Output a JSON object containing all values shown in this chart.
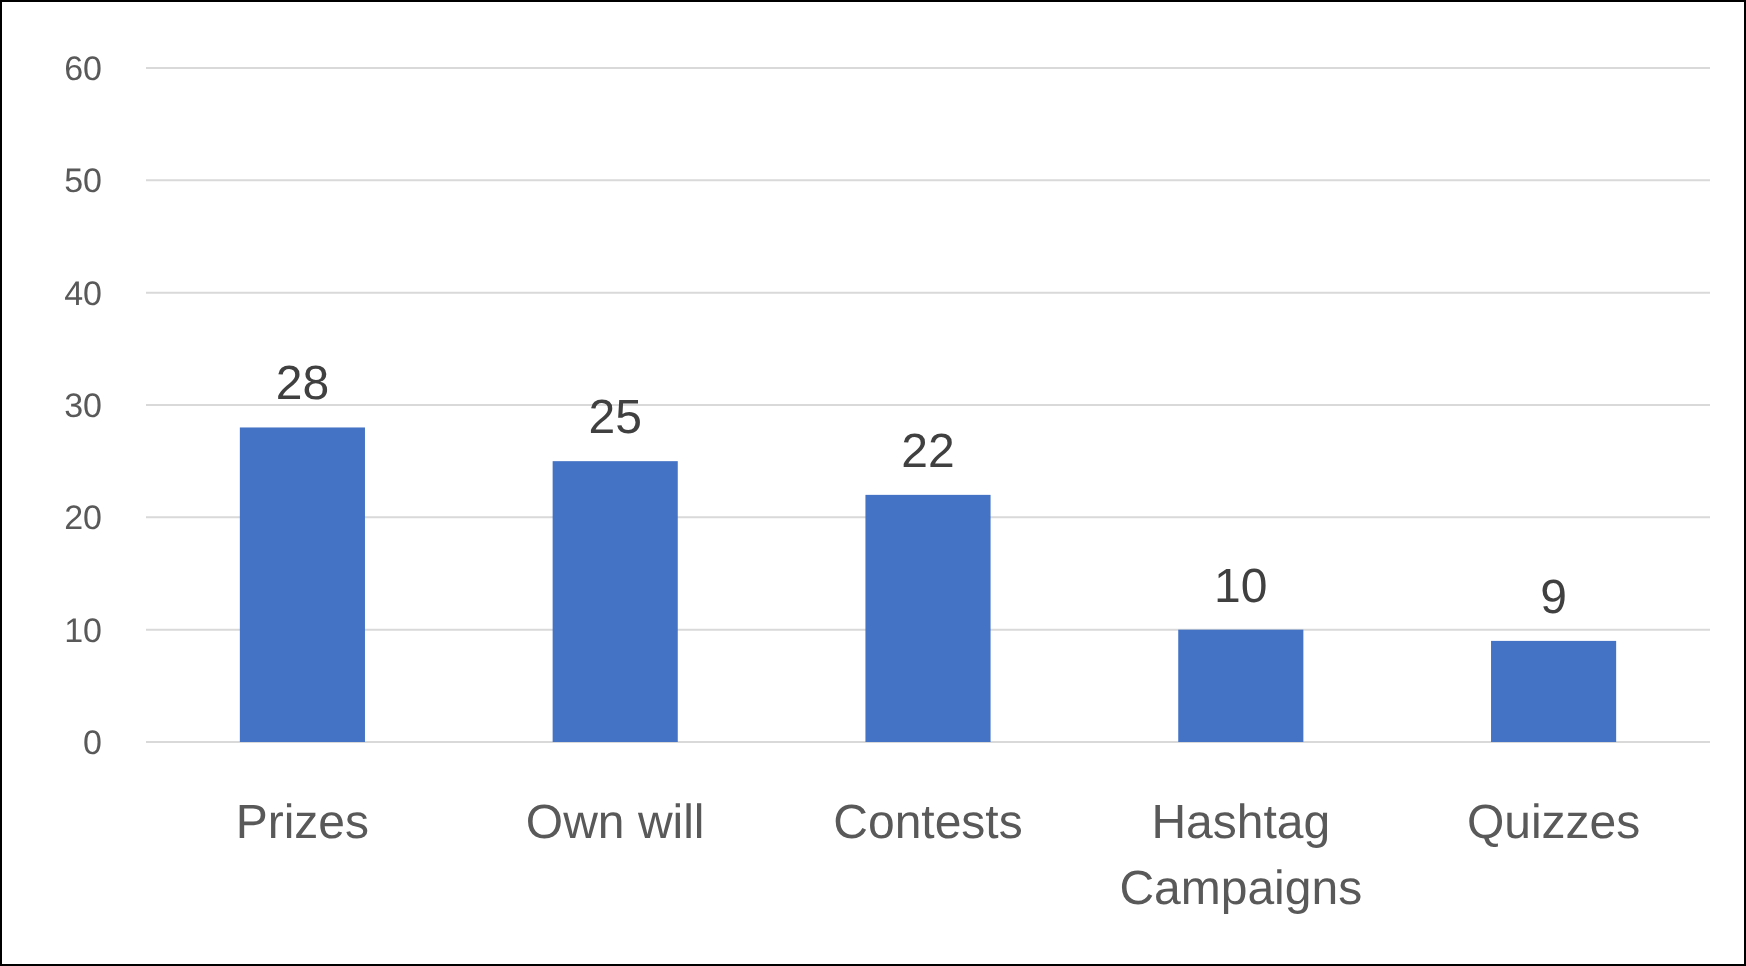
{
  "chart_data": {
    "type": "bar",
    "categories": [
      "Prizes",
      "Own will",
      "Contests",
      "Hashtag Campaigns",
      "Quizzes"
    ],
    "values": [
      28,
      25,
      22,
      10,
      9
    ],
    "color": "#4472c4",
    "ylim": [
      0,
      60
    ],
    "yticks": [
      0,
      10,
      20,
      30,
      40,
      50,
      60
    ],
    "grid": "y",
    "data_labels": true
  }
}
